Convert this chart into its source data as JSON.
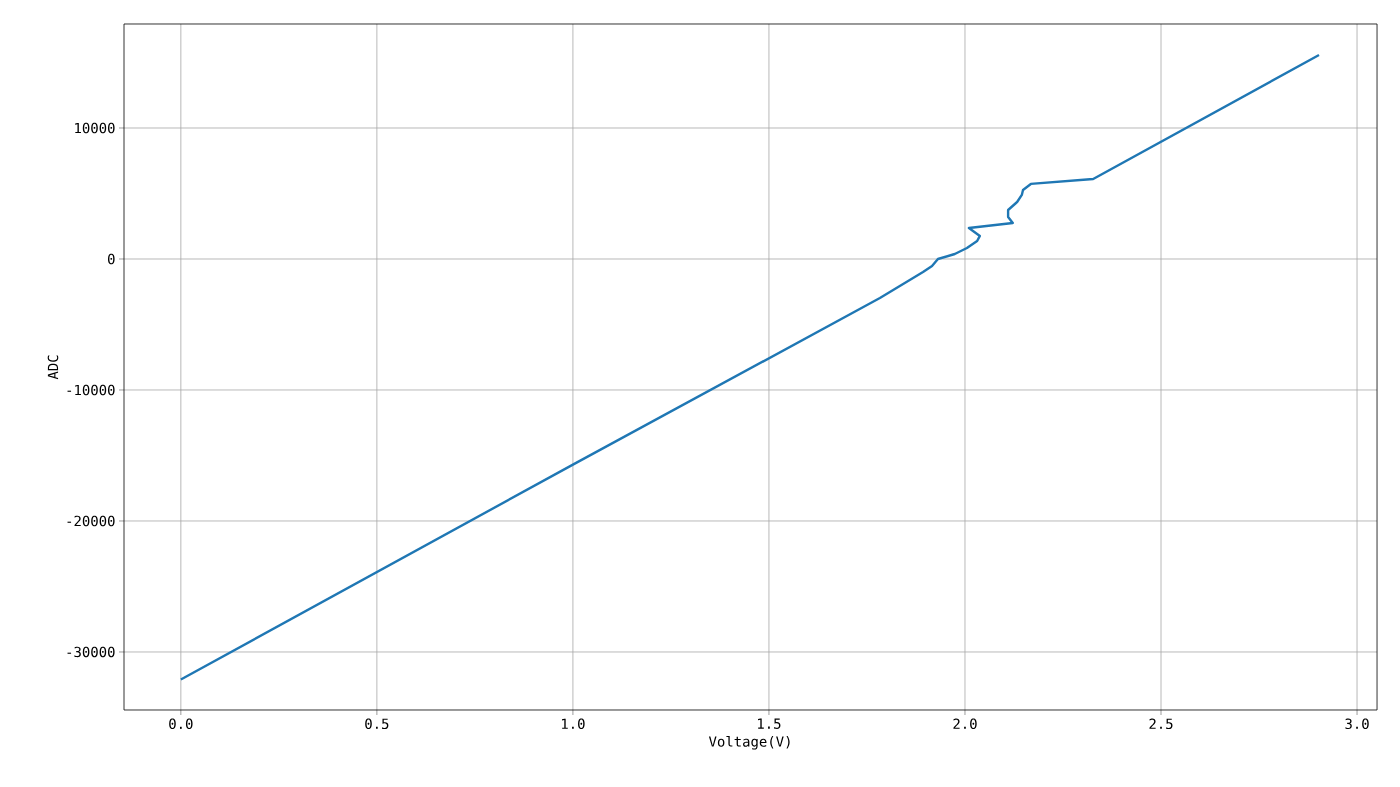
{
  "chart_data": {
    "type": "line",
    "xlabel": "Voltage(V)",
    "ylabel": "ADC",
    "xlim": [
      -0.145,
      3.051
    ],
    "ylim": [
      -34430,
      17940
    ],
    "xticks": [
      {
        "value": 0,
        "label": "0.0"
      },
      {
        "value": 0.5,
        "label": "0.5"
      },
      {
        "value": 1,
        "label": "1.0"
      },
      {
        "value": 1.5,
        "label": "1.5"
      },
      {
        "value": 2,
        "label": "2.0"
      },
      {
        "value": 2.5,
        "label": "2.5"
      },
      {
        "value": 3,
        "label": "3.0"
      }
    ],
    "yticks": [
      -30000,
      -20000,
      -10000,
      0,
      10000
    ],
    "grid": true,
    "marker": "none",
    "line_style": "solid",
    "series": [
      {
        "color": "#1f77b4",
        "x": [
          0,
          1.0,
          1.783,
          1.893,
          1.916,
          1.931,
          1.974,
          2.005,
          2.031,
          2.038,
          2.01,
          2.122,
          2.11,
          2.11,
          2.133,
          2.145,
          2.148,
          2.168,
          2.327,
          2.903
        ],
        "values": [
          -32100,
          -15700,
          -2980,
          -990,
          -530,
          0,
          380,
          840,
          1370,
          1760,
          2370,
          2750,
          3210,
          3740,
          4350,
          4890,
          5270,
          5730,
          6110,
          15570
        ]
      }
    ]
  }
}
